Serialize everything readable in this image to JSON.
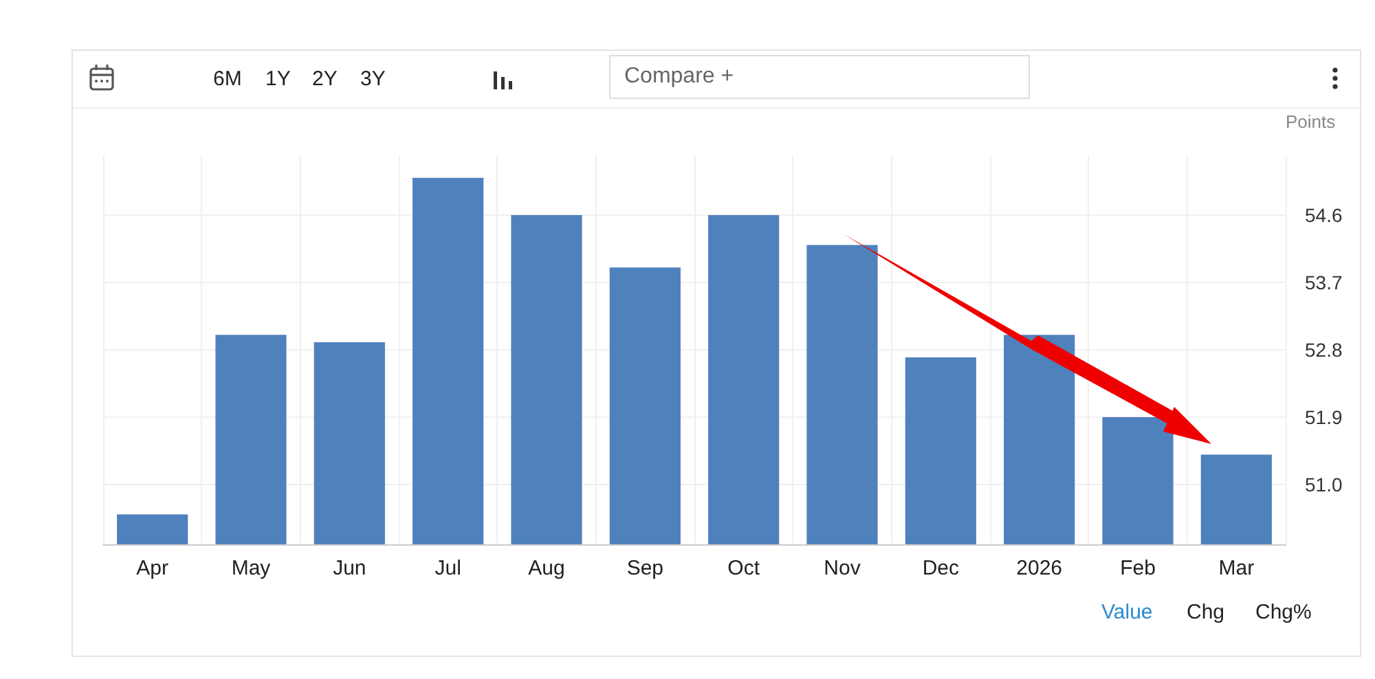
{
  "chart_data": {
    "type": "bar",
    "ylabel": "Points",
    "categories": [
      "Apr",
      "May",
      "Jun",
      "Jul",
      "Aug",
      "Sep",
      "Oct",
      "Nov",
      "Dec",
      "2026",
      "Feb",
      "Mar"
    ],
    "values": [
      50.6,
      53.0,
      52.9,
      55.1,
      54.6,
      53.9,
      54.6,
      54.2,
      52.7,
      53.0,
      51.9,
      51.4
    ],
    "color": "#4f81bd",
    "ylim": [
      50.2,
      55.4
    ],
    "yticks": [
      {
        "value": 51,
        "label": "51.0"
      },
      51.9,
      52.8,
      53.7,
      54.6
    ],
    "grid": true,
    "annotations": [
      "6M",
      "1Y",
      "2Y",
      "3Y",
      "Compare +",
      "Value",
      "Chg",
      "Chg%"
    ]
  }
}
